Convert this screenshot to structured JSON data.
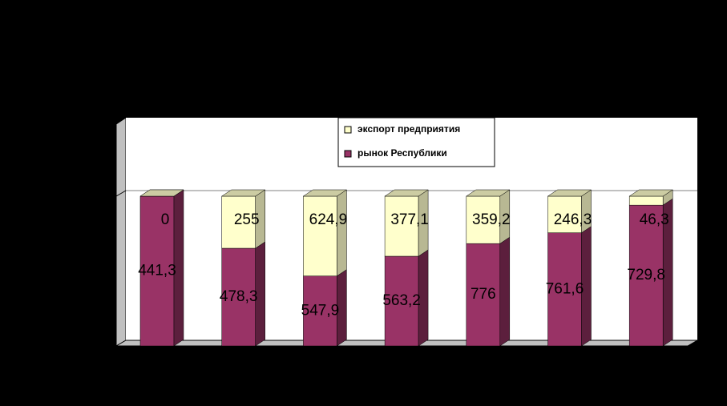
{
  "chart_data": {
    "type": "stacked-percent-bar",
    "series": [
      {
        "name": "рынок Республики",
        "color": "#993366",
        "values": [
          441.3,
          478.3,
          547.9,
          563.2,
          776,
          761.6,
          729.8
        ],
        "value_labels": [
          "441,3",
          "478,3",
          "547,9",
          "563,2",
          "776",
          "761,6",
          "729,8"
        ]
      },
      {
        "name": "экспорт предприятия",
        "color": "#FFFFCC",
        "values": [
          0,
          255,
          624.9,
          377.1,
          359.2,
          246.3,
          46.3
        ],
        "value_labels": [
          "0",
          "255",
          "624,9",
          "377,1",
          "359,2",
          "246,3",
          "46,3"
        ]
      }
    ],
    "ylim": [
      0,
      100
    ]
  }
}
